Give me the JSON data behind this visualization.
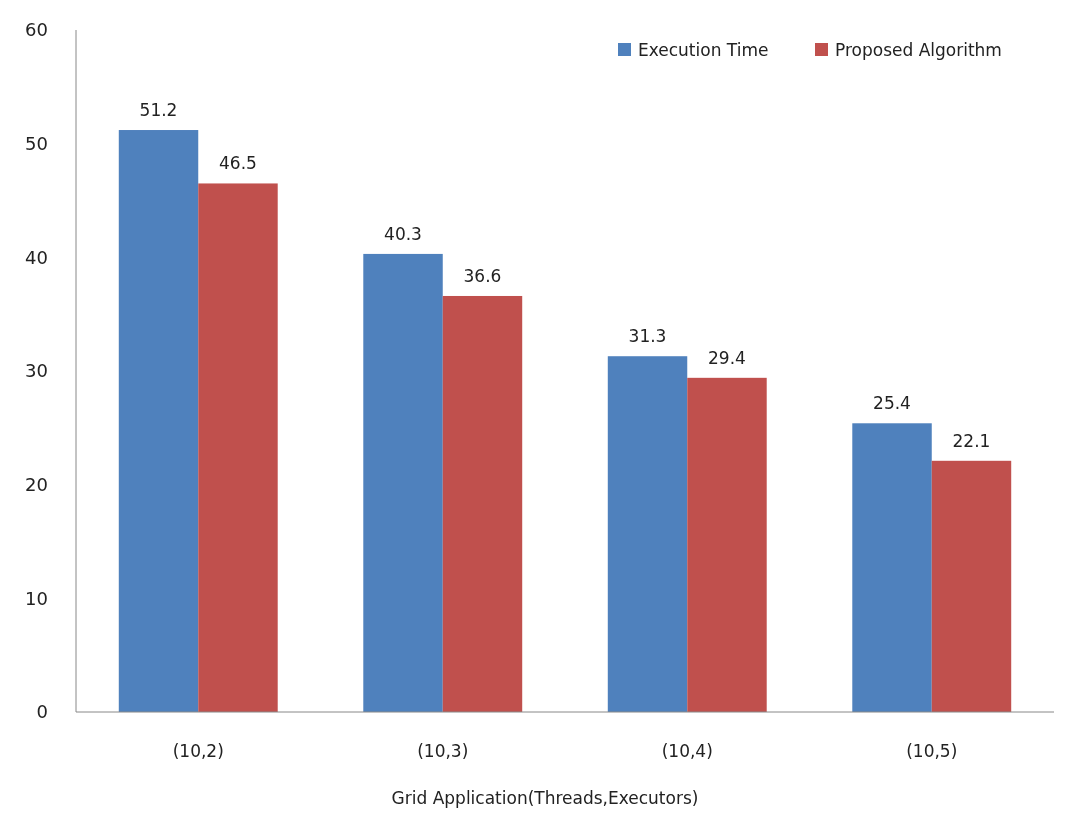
{
  "chart_data": {
    "type": "bar",
    "xlabel": "Grid Application(Threads,Executors)",
    "categories": [
      "(10,2)",
      "(10,3)",
      "(10,4)",
      "(10,5)"
    ],
    "series": [
      {
        "name": "Execution Time",
        "color": "#4f81bd",
        "values": [
          51.2,
          40.3,
          31.3,
          25.4
        ]
      },
      {
        "name": "Proposed Algorithm",
        "color": "#c0504d",
        "values": [
          46.5,
          36.6,
          29.4,
          22.1
        ]
      }
    ],
    "ylim": [
      0,
      60
    ],
    "yticks": [
      0,
      10,
      20,
      30,
      40,
      50,
      60
    ],
    "grid": false,
    "legend": "top right",
    "data_labels": true
  }
}
